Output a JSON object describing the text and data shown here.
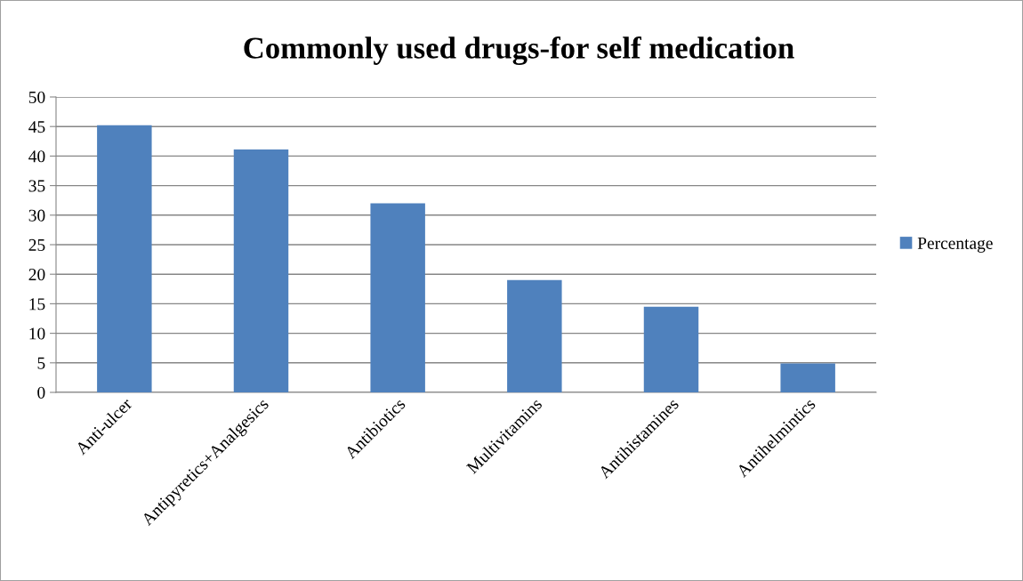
{
  "chart_data": {
    "type": "bar",
    "title": "Commonly used drugs-for self medication",
    "categories": [
      "Anti-ulcer",
      "Antipyretics+Analgesics",
      "Antibiotics",
      "Multivitamins",
      "Antihistamines",
      "Antihelmintics"
    ],
    "series": [
      {
        "name": "Percentage",
        "color": "#4f81bd",
        "values": [
          45.2,
          41.1,
          32,
          19,
          14.5,
          4.9
        ]
      }
    ],
    "ylim": [
      0,
      50
    ],
    "yticks": [
      0,
      5,
      10,
      15,
      20,
      25,
      30,
      35,
      40,
      45,
      50
    ],
    "grid": "y",
    "legend": "right"
  }
}
